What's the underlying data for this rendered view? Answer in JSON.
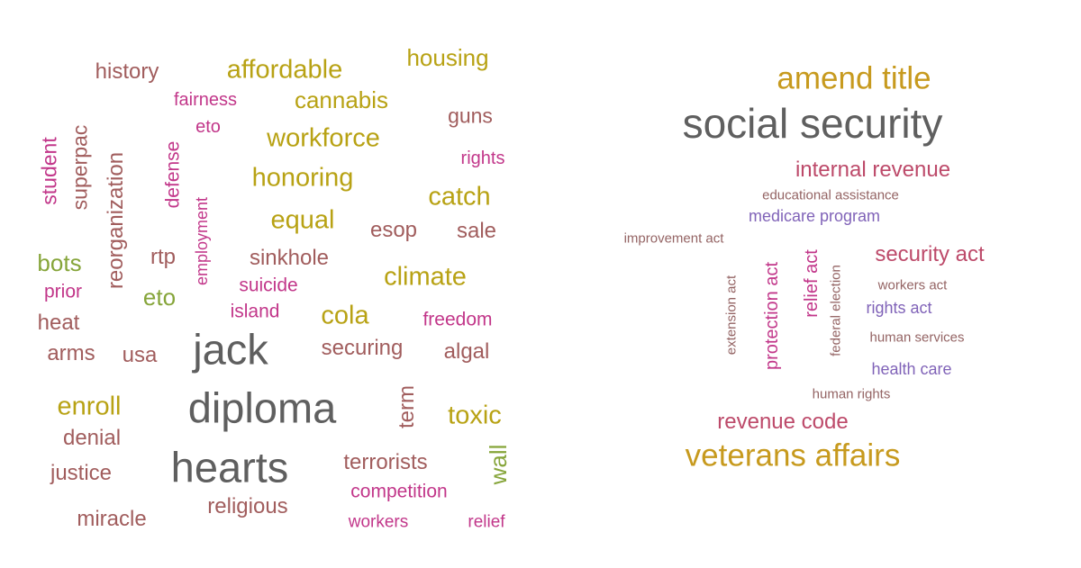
{
  "palette": {
    "gray": "#5f5f5f",
    "brown": "#a15d5d",
    "olive": "#b8a214",
    "green": "#86a53a",
    "magenta": "#c2378a",
    "purple": "#8063b8",
    "gold": "#c79a1e",
    "rose": "#bd4a6a",
    "taupe": "#946464"
  },
  "left_cloud": {
    "words": [
      {
        "text": "history",
        "color": "brown",
        "weight": 3
      },
      {
        "text": "affordable",
        "color": "olive",
        "weight": 5
      },
      {
        "text": "housing",
        "color": "olive",
        "weight": 4
      },
      {
        "text": "fairness",
        "color": "magenta",
        "weight": 2
      },
      {
        "text": "cannabis",
        "color": "olive",
        "weight": 4
      },
      {
        "text": "eto",
        "color": "magenta",
        "weight": 2
      },
      {
        "text": "guns",
        "color": "brown",
        "weight": 3
      },
      {
        "text": "workforce",
        "color": "olive",
        "weight": 5
      },
      {
        "text": "rights",
        "color": "magenta",
        "weight": 2
      },
      {
        "text": "student",
        "color": "magenta",
        "weight": 3
      },
      {
        "text": "superpac",
        "color": "brown",
        "weight": 3
      },
      {
        "text": "reorganization",
        "color": "brown",
        "weight": 3
      },
      {
        "text": "defense",
        "color": "magenta",
        "weight": 3
      },
      {
        "text": "honoring",
        "color": "olive",
        "weight": 5
      },
      {
        "text": "catch",
        "color": "olive",
        "weight": 5
      },
      {
        "text": "employment",
        "color": "magenta",
        "weight": 2
      },
      {
        "text": "equal",
        "color": "olive",
        "weight": 5
      },
      {
        "text": "esop",
        "color": "brown",
        "weight": 3
      },
      {
        "text": "sale",
        "color": "brown",
        "weight": 3
      },
      {
        "text": "bots",
        "color": "green",
        "weight": 4
      },
      {
        "text": "rtp",
        "color": "brown",
        "weight": 3
      },
      {
        "text": "sinkhole",
        "color": "brown",
        "weight": 3
      },
      {
        "text": "climate",
        "color": "olive",
        "weight": 5
      },
      {
        "text": "prior",
        "color": "magenta",
        "weight": 2
      },
      {
        "text": "eto",
        "color": "green",
        "weight": 4
      },
      {
        "text": "suicide",
        "color": "magenta",
        "weight": 2
      },
      {
        "text": "island",
        "color": "magenta",
        "weight": 2
      },
      {
        "text": "cola",
        "color": "olive",
        "weight": 5
      },
      {
        "text": "freedom",
        "color": "magenta",
        "weight": 2
      },
      {
        "text": "heat",
        "color": "brown",
        "weight": 3
      },
      {
        "text": "jack",
        "color": "gray",
        "weight": 8
      },
      {
        "text": "arms",
        "color": "brown",
        "weight": 3
      },
      {
        "text": "usa",
        "color": "brown",
        "weight": 3
      },
      {
        "text": "securing",
        "color": "brown",
        "weight": 3
      },
      {
        "text": "algal",
        "color": "brown",
        "weight": 3
      },
      {
        "text": "diploma",
        "color": "gray",
        "weight": 8
      },
      {
        "text": "term",
        "color": "brown",
        "weight": 3
      },
      {
        "text": "enroll",
        "color": "olive",
        "weight": 5
      },
      {
        "text": "toxic",
        "color": "olive",
        "weight": 5
      },
      {
        "text": "denial",
        "color": "brown",
        "weight": 3
      },
      {
        "text": "hearts",
        "color": "gray",
        "weight": 8
      },
      {
        "text": "terrorists",
        "color": "brown",
        "weight": 3
      },
      {
        "text": "wall",
        "color": "green",
        "weight": 4
      },
      {
        "text": "justice",
        "color": "brown",
        "weight": 3
      },
      {
        "text": "competition",
        "color": "magenta",
        "weight": 2
      },
      {
        "text": "religious",
        "color": "brown",
        "weight": 3
      },
      {
        "text": "miracle",
        "color": "brown",
        "weight": 3
      },
      {
        "text": "workers",
        "color": "magenta",
        "weight": 2
      },
      {
        "text": "relief",
        "color": "magenta",
        "weight": 2
      }
    ]
  },
  "right_cloud": {
    "words": [
      {
        "text": "amend title",
        "color": "gold",
        "weight": 6
      },
      {
        "text": "social security",
        "color": "gray",
        "weight": 8
      },
      {
        "text": "internal revenue",
        "color": "rose",
        "weight": 4
      },
      {
        "text": "educational assistance",
        "color": "taupe",
        "weight": 1
      },
      {
        "text": "medicare program",
        "color": "purple",
        "weight": 2
      },
      {
        "text": "improvement act",
        "color": "taupe",
        "weight": 1
      },
      {
        "text": "security act",
        "color": "rose",
        "weight": 4
      },
      {
        "text": "extension act",
        "color": "taupe",
        "weight": 1
      },
      {
        "text": "protection act",
        "color": "magenta",
        "weight": 3
      },
      {
        "text": "relief act",
        "color": "magenta",
        "weight": 3
      },
      {
        "text": "federal election",
        "color": "taupe",
        "weight": 1
      },
      {
        "text": "workers act",
        "color": "taupe",
        "weight": 1
      },
      {
        "text": "rights act",
        "color": "purple",
        "weight": 2
      },
      {
        "text": "human services",
        "color": "taupe",
        "weight": 1
      },
      {
        "text": "health care",
        "color": "purple",
        "weight": 2
      },
      {
        "text": "human rights",
        "color": "taupe",
        "weight": 1
      },
      {
        "text": "revenue code",
        "color": "rose",
        "weight": 4
      },
      {
        "text": "veterans affairs",
        "color": "gold",
        "weight": 6
      }
    ]
  }
}
